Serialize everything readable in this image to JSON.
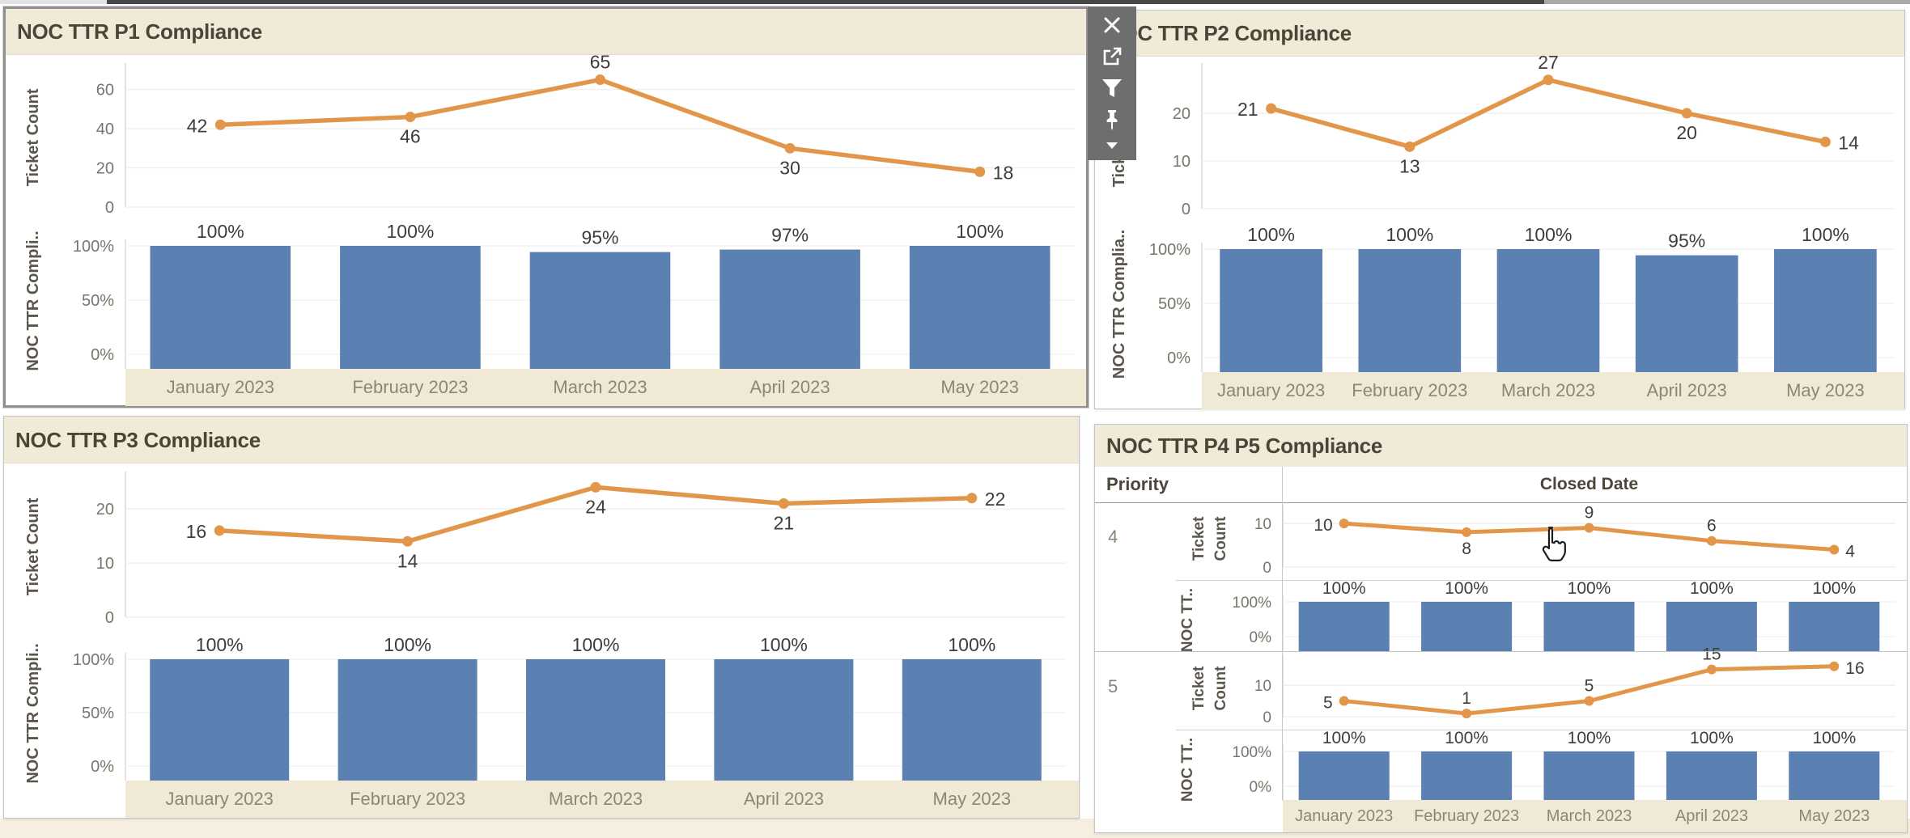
{
  "colors": {
    "line": "#e2964a",
    "bar": "#5b80b2",
    "header_bg": "#f0ead9",
    "month_strip_bg": "#f0e9d6",
    "title_text": "#4b4536",
    "toolbar_bg": "#6e6e6e"
  },
  "months": [
    "January 2023",
    "February 2023",
    "March 2023",
    "April 2023",
    "May 2023"
  ],
  "toolbar": {
    "icons": [
      "close",
      "open-external",
      "filter",
      "pin",
      "caret-down"
    ]
  },
  "cursor": {
    "shape": "hand-pointer"
  },
  "chart_data": [
    {
      "id": "p1",
      "type": "line+bar",
      "title": "NOC TTR P1 Compliance",
      "categories": [
        "January 2023",
        "February 2023",
        "March 2023",
        "April 2023",
        "May 2023"
      ],
      "line": {
        "ylabel": "Ticket Count",
        "yticks": [
          60,
          40,
          20,
          0
        ],
        "ylim": [
          0,
          71
        ],
        "values": [
          42,
          46,
          65,
          30,
          18
        ],
        "label_side": [
          "left",
          "below",
          "above",
          "below",
          "right"
        ]
      },
      "bar": {
        "ylabel": "NOC TTR Compli..",
        "yticks": [
          "100%",
          "50%",
          "0%"
        ],
        "values": [
          100,
          100,
          95,
          97,
          100
        ],
        "labels": [
          "100%",
          "100%",
          "95%",
          "97%",
          "100%"
        ]
      }
    },
    {
      "id": "p2",
      "type": "line+bar",
      "title": "NOC TTR P2 Compliance",
      "categories": [
        "January 2023",
        "February 2023",
        "March 2023",
        "April 2023",
        "May 2023"
      ],
      "line": {
        "ylabel": "Ticket Count",
        "yticks": [
          20,
          10,
          0
        ],
        "ylim": [
          0,
          29.5
        ],
        "values": [
          21,
          13,
          27,
          20,
          14
        ],
        "label_side": [
          "left",
          "below",
          "above",
          "below",
          "right"
        ]
      },
      "bar": {
        "ylabel": "NOC TTR Complia..",
        "yticks": [
          "100%",
          "50%",
          "0%"
        ],
        "values": [
          100,
          100,
          100,
          95,
          100
        ],
        "labels": [
          "100%",
          "100%",
          "100%",
          "95%",
          "100%"
        ]
      }
    },
    {
      "id": "p3",
      "type": "line+bar",
      "title": "NOC TTR P3 Compliance",
      "categories": [
        "January 2023",
        "February 2023",
        "March 2023",
        "April 2023",
        "May 2023"
      ],
      "line": {
        "ylabel": "Ticket Count",
        "yticks": [
          20,
          10,
          0
        ],
        "ylim": [
          0,
          26
        ],
        "values": [
          16,
          14,
          24,
          21,
          22
        ],
        "label_side": [
          "left",
          "below",
          "below",
          "below",
          "right"
        ]
      },
      "bar": {
        "ylabel": "NOC TTR Compli..",
        "yticks": [
          "100%",
          "50%",
          "0%"
        ],
        "values": [
          100,
          100,
          100,
          100,
          100
        ],
        "labels": [
          "100%",
          "100%",
          "100%",
          "100%",
          "100%"
        ]
      }
    },
    {
      "id": "p4",
      "type": "table(line+bar)",
      "title": "NOC TTR P4 P5 Compliance",
      "row_field": "Priority",
      "col_field": "Closed Date",
      "categories": [
        "January 2023",
        "February 2023",
        "March 2023",
        "April 2023",
        "May 2023"
      ],
      "rows": [
        {
          "priority": "4",
          "line": {
            "ylabel_lines": [
              "Ticket",
              "Count"
            ],
            "yticks": [
              10,
              0
            ],
            "ylim": [
              0,
              13
            ],
            "values": [
              10,
              8,
              9,
              6,
              4
            ],
            "label_side": [
              "left",
              "below",
              "above",
              "above",
              "right"
            ]
          },
          "bar": {
            "ylabel": "NOC TT..",
            "yticks": [
              "100%",
              "0%"
            ],
            "values": [
              100,
              100,
              100,
              100,
              100
            ],
            "labels": [
              "100%",
              "100%",
              "100%",
              "100%",
              "100%"
            ]
          }
        },
        {
          "priority": "5",
          "line": {
            "ylabel_lines": [
              "Ticket",
              "Count"
            ],
            "yticks": [
              10,
              0
            ],
            "ylim": [
              0,
              18
            ],
            "values": [
              5,
              1,
              5,
              15,
              16
            ],
            "label_side": [
              "left",
              "above",
              "above",
              "above",
              "right"
            ]
          },
          "bar": {
            "ylabel": "NOC TT..",
            "yticks": [
              "100%",
              "0%"
            ],
            "values": [
              100,
              100,
              100,
              100,
              100
            ],
            "labels": [
              "100%",
              "100%",
              "100%",
              "100%",
              "100%"
            ]
          }
        }
      ]
    }
  ]
}
